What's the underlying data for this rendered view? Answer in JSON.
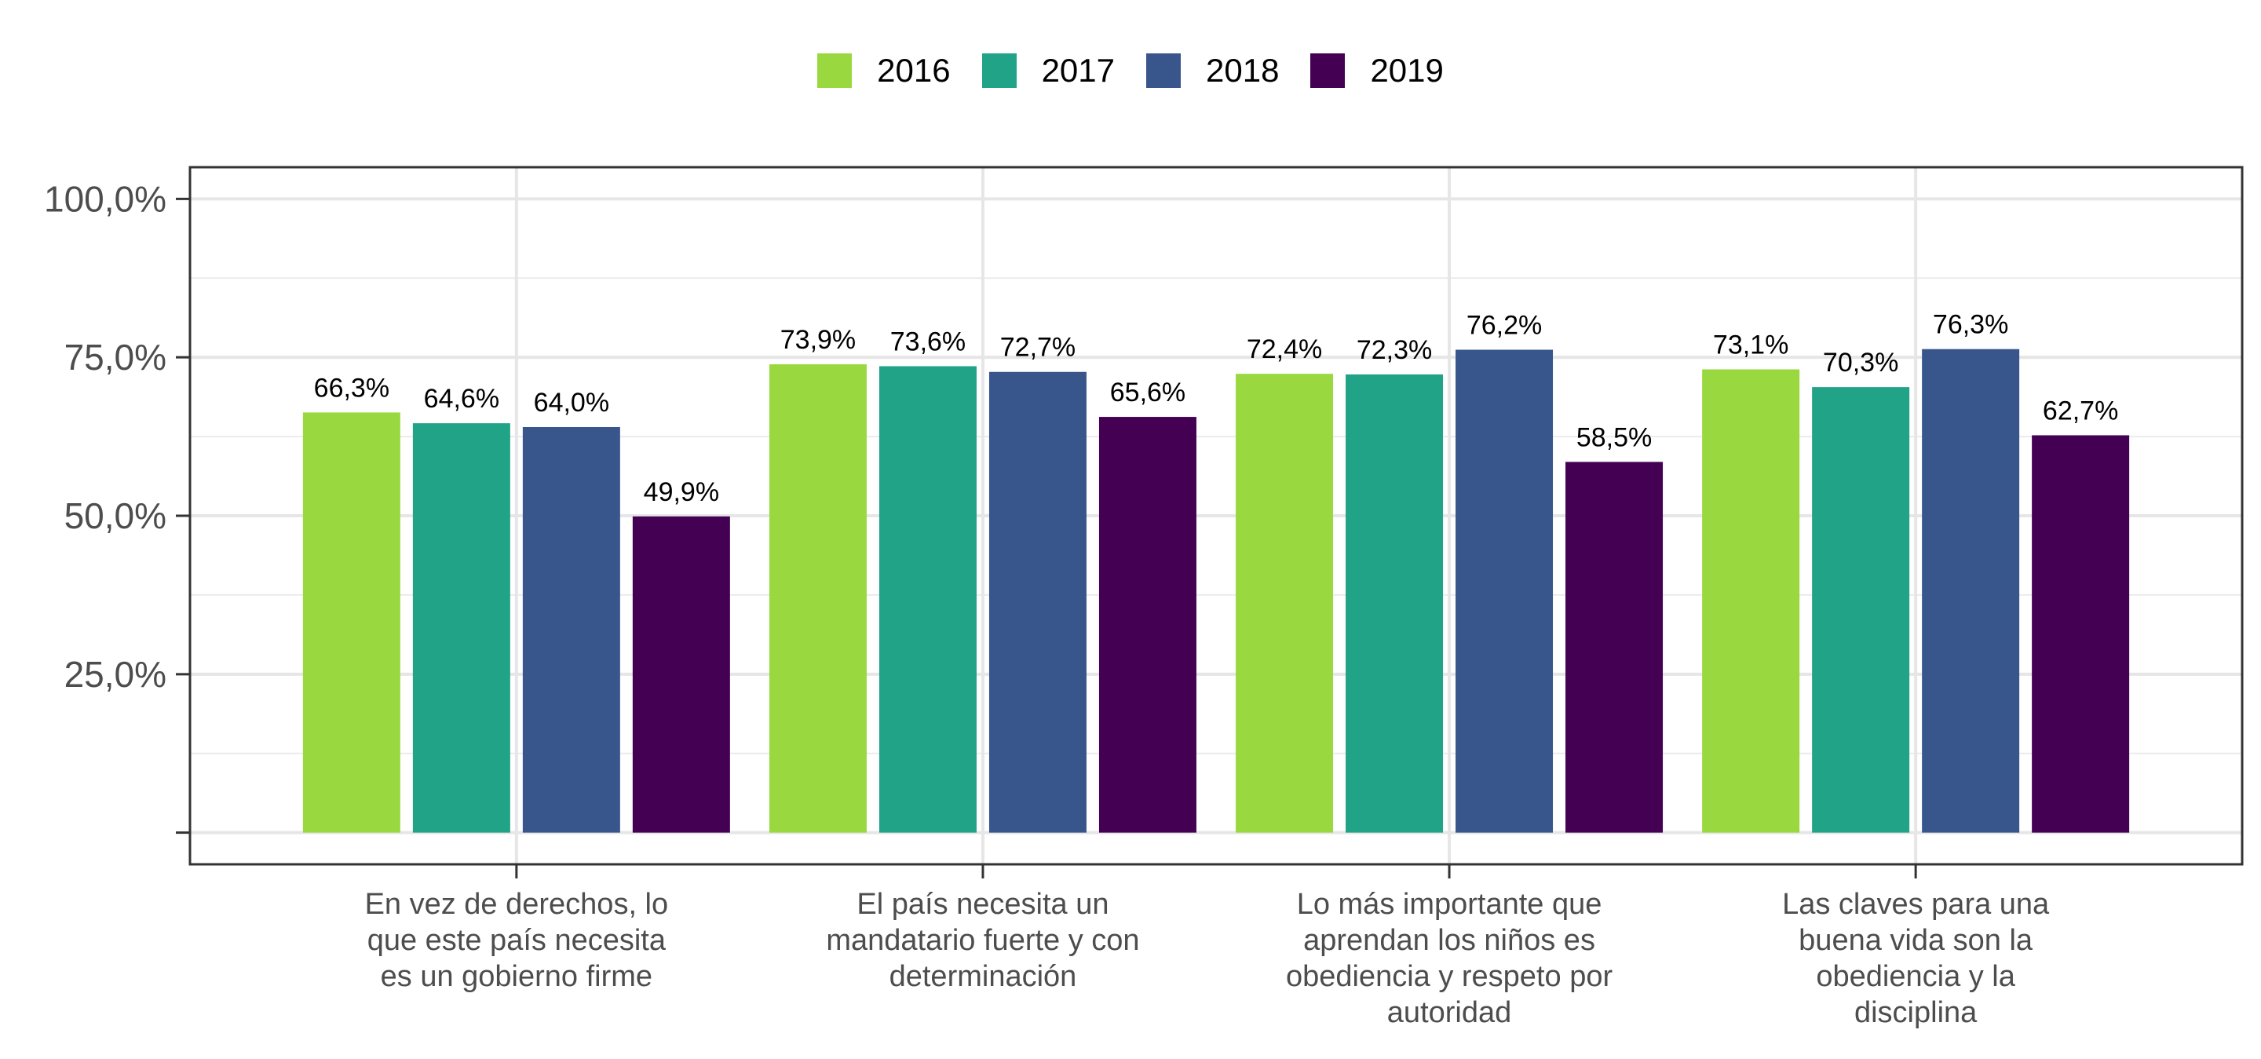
{
  "chart_data": {
    "type": "bar",
    "categories": [
      "En vez de derechos, lo que este país necesita es un gobierno firme",
      "El país necesita un mandatario fuerte y con determinación",
      "Lo más importante que aprendan los niños es obediencia y respeto por autoridad",
      "Las claves para una buena vida son la obediencia y la disciplina"
    ],
    "category_lines": [
      [
        "En vez de derechos, lo",
        "que este país necesita",
        "es un gobierno firme"
      ],
      [
        "El país necesita un",
        "mandatario fuerte y con",
        "determinación"
      ],
      [
        "Lo más importante que",
        "aprendan los niños es",
        "obediencia y respeto por",
        "autoridad"
      ],
      [
        "Las claves para una",
        "buena vida son la",
        "obediencia y la",
        "disciplina"
      ]
    ],
    "series": [
      {
        "name": "2016",
        "color": "#9ad83f",
        "values": [
          66.3,
          73.9,
          72.4,
          73.1
        ],
        "labels": [
          "66,3%",
          "73,9%",
          "72,4%",
          "73,1%"
        ]
      },
      {
        "name": "2017",
        "color": "#20a387",
        "values": [
          64.6,
          73.6,
          72.3,
          70.3
        ],
        "labels": [
          "64,6%",
          "73,6%",
          "72,3%",
          "70,3%"
        ]
      },
      {
        "name": "2018",
        "color": "#39568c",
        "values": [
          64.0,
          72.7,
          76.2,
          76.3
        ],
        "labels": [
          "64,0%",
          "72,7%",
          "76,2%",
          "76,3%"
        ]
      },
      {
        "name": "2019",
        "color": "#440154",
        "values": [
          49.9,
          65.6,
          58.5,
          62.7
        ],
        "labels": [
          "49,9%",
          "65,6%",
          "58,5%",
          "62,7%"
        ]
      }
    ],
    "y_ticks": [
      {
        "value": 25,
        "label": "25,0%"
      },
      {
        "value": 50,
        "label": "50,0%"
      },
      {
        "value": 75,
        "label": "75,0%"
      },
      {
        "value": 100,
        "label": "100,0%"
      }
    ],
    "ylim": [
      -5,
      105
    ],
    "grid": true,
    "legend_position": "top",
    "xlabel": "",
    "ylabel": "",
    "title": ""
  }
}
